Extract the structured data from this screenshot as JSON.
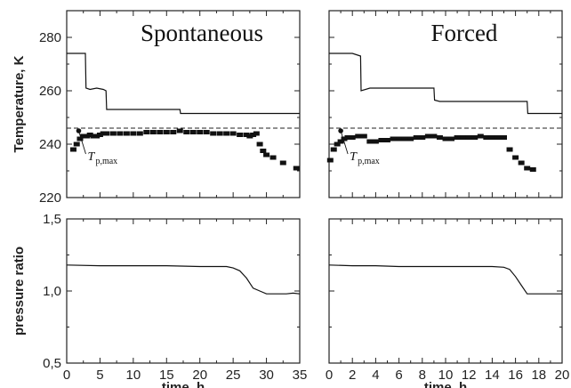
{
  "chart_data": [
    {
      "type": "line",
      "panel": "top-left",
      "title": "Spontaneous",
      "ylabel": "Temperature, K",
      "xlim": [
        0,
        35
      ],
      "ylim": [
        220,
        290
      ],
      "yticks": [
        "220",
        "240",
        "260",
        "280"
      ],
      "annotation": {
        "main": "T",
        "sub": "p,max",
        "point": [
          1.8,
          245
        ]
      },
      "dashed_level": 246,
      "series": [
        {
          "style": "solid",
          "values": [
            [
              0,
              274
            ],
            [
              2.8,
              274
            ],
            [
              2.9,
              261
            ],
            [
              3.5,
              260.5
            ],
            [
              4.5,
              261
            ],
            [
              5.5,
              260.5
            ],
            [
              5.9,
              260
            ],
            [
              6.0,
              253
            ],
            [
              17,
              253
            ],
            [
              17.1,
              251.5
            ],
            [
              35,
              251.5
            ]
          ]
        },
        {
          "style": "markers",
          "values": [
            [
              1.0,
              238
            ],
            [
              1.5,
              240
            ],
            [
              2.0,
              242
            ],
            [
              2.5,
              243
            ],
            [
              3.0,
              243
            ],
            [
              3.5,
              243.5
            ],
            [
              4.0,
              243
            ],
            [
              4.5,
              243
            ],
            [
              5,
              243.5
            ],
            [
              5.5,
              244
            ],
            [
              6,
              244
            ],
            [
              7,
              244
            ],
            [
              8,
              244
            ],
            [
              9,
              244
            ],
            [
              10,
              244
            ],
            [
              11,
              244
            ],
            [
              12,
              244.5
            ],
            [
              13,
              244.5
            ],
            [
              14,
              244.5
            ],
            [
              15,
              244.5
            ],
            [
              16,
              244.5
            ],
            [
              17,
              245
            ],
            [
              18,
              244.5
            ],
            [
              19,
              244.5
            ],
            [
              20,
              244.5
            ],
            [
              21,
              244.5
            ],
            [
              22,
              244
            ],
            [
              23,
              244
            ],
            [
              24,
              244
            ],
            [
              25,
              244
            ],
            [
              26,
              243.5
            ],
            [
              27,
              243.5
            ],
            [
              27.5,
              243
            ],
            [
              28,
              243.5
            ],
            [
              28.5,
              244
            ],
            [
              29,
              240
            ],
            [
              29.5,
              237.5
            ],
            [
              30,
              236
            ],
            [
              31,
              235
            ],
            [
              32.5,
              233
            ],
            [
              34.5,
              231
            ]
          ]
        }
      ]
    },
    {
      "type": "line",
      "panel": "bottom-left",
      "ylabel": "pressure ratio",
      "xlabel": "time, h",
      "xlim": [
        0,
        35
      ],
      "ylim": [
        0.5,
        1.5
      ],
      "xticks": [
        "0",
        "5",
        "10",
        "15",
        "20",
        "25",
        "30",
        "35"
      ],
      "yticks": [
        "0,5",
        "1,0",
        "1,5"
      ],
      "series": [
        {
          "style": "solid",
          "values": [
            [
              0,
              1.18
            ],
            [
              5,
              1.175
            ],
            [
              10,
              1.175
            ],
            [
              15,
              1.175
            ],
            [
              20,
              1.17
            ],
            [
              24,
              1.17
            ],
            [
              25,
              1.16
            ],
            [
              26,
              1.14
            ],
            [
              27,
              1.09
            ],
            [
              28,
              1.02
            ],
            [
              29,
              1.0
            ],
            [
              30,
              0.98
            ],
            [
              33,
              0.98
            ],
            [
              34,
              0.985
            ],
            [
              35,
              0.98
            ]
          ]
        }
      ]
    },
    {
      "type": "line",
      "panel": "top-right",
      "title": "Forced",
      "xlim": [
        0,
        20
      ],
      "ylim": [
        220,
        290
      ],
      "annotation": {
        "main": "T",
        "sub": "p,max",
        "point": [
          1.0,
          245
        ]
      },
      "dashed_level": 246,
      "series": [
        {
          "style": "solid",
          "values": [
            [
              0,
              274
            ],
            [
              2,
              274
            ],
            [
              2.7,
              273
            ],
            [
              2.75,
              260
            ],
            [
              3.5,
              261
            ],
            [
              9,
              261
            ],
            [
              9.05,
              256.5
            ],
            [
              9.5,
              256
            ],
            [
              17,
              256
            ],
            [
              17.05,
              251.5
            ],
            [
              20,
              251.5
            ]
          ]
        },
        {
          "style": "markers",
          "values": [
            [
              0.1,
              234
            ],
            [
              0.4,
              238
            ],
            [
              0.7,
              240
            ],
            [
              1.0,
              241
            ],
            [
              1.3,
              242
            ],
            [
              1.6,
              242.5
            ],
            [
              2.0,
              242.5
            ],
            [
              2.5,
              243
            ],
            [
              3,
              243
            ],
            [
              3.5,
              241
            ],
            [
              4,
              241
            ],
            [
              4.5,
              241.5
            ],
            [
              5,
              241.5
            ],
            [
              5.5,
              242
            ],
            [
              6,
              242
            ],
            [
              6.5,
              242
            ],
            [
              7,
              242
            ],
            [
              7.5,
              242.5
            ],
            [
              8,
              242.5
            ],
            [
              8.5,
              243
            ],
            [
              9,
              243
            ],
            [
              9.5,
              242.5
            ],
            [
              10,
              242
            ],
            [
              10.5,
              242
            ],
            [
              11,
              242.5
            ],
            [
              11.5,
              242.5
            ],
            [
              12,
              242.5
            ],
            [
              12.5,
              242.5
            ],
            [
              13,
              243
            ],
            [
              13.5,
              242.5
            ],
            [
              14,
              242.5
            ],
            [
              14.5,
              242.5
            ],
            [
              15,
              242.5
            ],
            [
              15.5,
              238
            ],
            [
              16,
              235
            ],
            [
              16.5,
              233
            ],
            [
              17,
              231
            ],
            [
              17.5,
              230.5
            ]
          ]
        }
      ]
    },
    {
      "type": "line",
      "panel": "bottom-right",
      "xlabel": "time, h",
      "xlim": [
        0,
        20
      ],
      "ylim": [
        0.5,
        1.5
      ],
      "xticks": [
        "0",
        "2",
        "4",
        "6",
        "8",
        "10",
        "12",
        "14",
        "16",
        "18",
        "20"
      ],
      "series": [
        {
          "style": "solid",
          "values": [
            [
              0,
              1.18
            ],
            [
              2,
              1.175
            ],
            [
              4,
              1.175
            ],
            [
              6,
              1.17
            ],
            [
              8,
              1.17
            ],
            [
              10,
              1.17
            ],
            [
              12,
              1.17
            ],
            [
              14,
              1.17
            ],
            [
              15,
              1.165
            ],
            [
              15.5,
              1.15
            ],
            [
              16,
              1.1
            ],
            [
              16.5,
              1.04
            ],
            [
              17,
              0.98
            ],
            [
              18,
              0.98
            ],
            [
              20,
              0.98
            ]
          ]
        }
      ]
    }
  ]
}
